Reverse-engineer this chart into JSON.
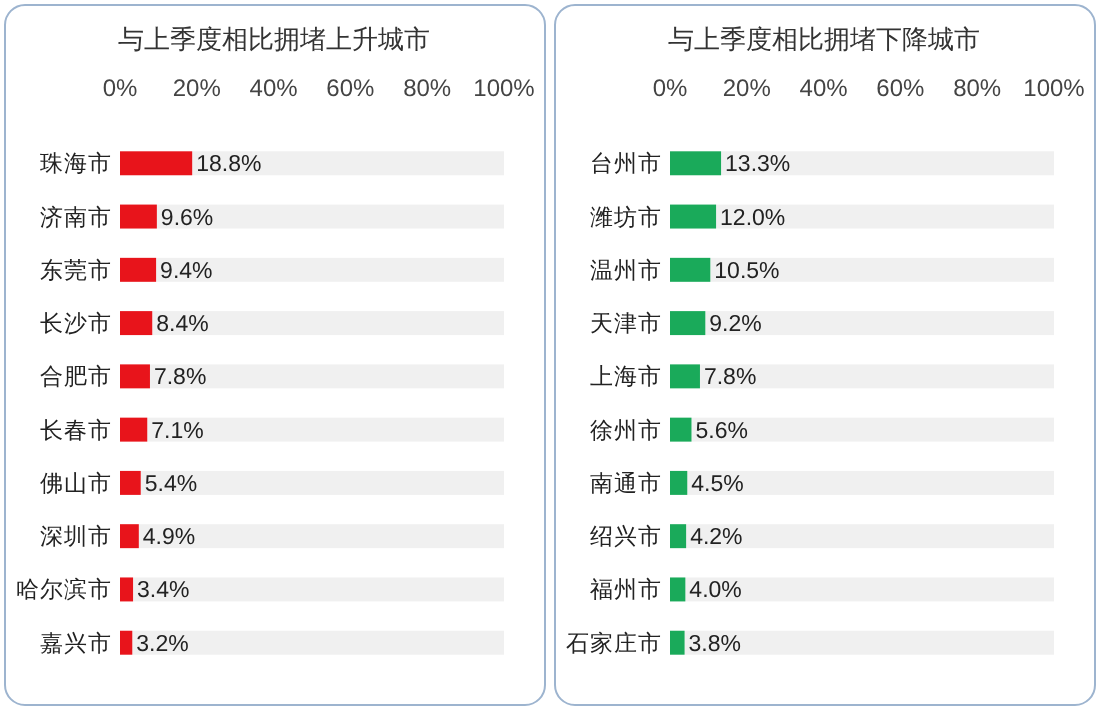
{
  "chart_data": [
    {
      "type": "bar",
      "title": "与上季度相比拥堵上升城市",
      "orientation": "horizontal",
      "stacked": true,
      "categories": [
        "珠海市",
        "济南市",
        "东莞市",
        "长沙市",
        "合肥市",
        "长春市",
        "佛山市",
        "深圳市",
        "哈尔滨市",
        "嘉兴市"
      ],
      "xlim": [
        0,
        100
      ],
      "xticks": [
        {
          "value": 0,
          "label": "0%"
        },
        {
          "value": 20,
          "label": "20%"
        },
        {
          "value": 40,
          "label": "40%"
        },
        {
          "value": 60,
          "label": "60%"
        },
        {
          "value": 80,
          "label": "80%"
        },
        {
          "value": 100,
          "label": "100%"
        }
      ],
      "series": [
        {
          "color": "#e8141b",
          "values": [
            18.8,
            9.6,
            9.4,
            8.4,
            7.8,
            7.1,
            5.4,
            4.9,
            3.4,
            3.2
          ],
          "value_labels": [
            "18.8%",
            "9.6%",
            "9.4%",
            "8.4%",
            "7.8%",
            "7.1%",
            "5.4%",
            "4.9%",
            "3.4%",
            "3.2%"
          ]
        },
        {
          "color": "#f0f0f0",
          "values": [
            81.2,
            90.4,
            90.6,
            91.6,
            92.2,
            92.9,
            94.6,
            95.1,
            96.6,
            96.8
          ]
        }
      ]
    },
    {
      "type": "bar",
      "title": "与上季度相比拥堵下降城市",
      "orientation": "horizontal",
      "stacked": true,
      "categories": [
        "台州市",
        "潍坊市",
        "温州市",
        "天津市",
        "上海市",
        "徐州市",
        "南通市",
        "绍兴市",
        "福州市",
        "石家庄市"
      ],
      "xlim": [
        0,
        100
      ],
      "xticks": [
        {
          "value": 0,
          "label": "0%"
        },
        {
          "value": 20,
          "label": "20%"
        },
        {
          "value": 40,
          "label": "40%"
        },
        {
          "value": 60,
          "label": "60%"
        },
        {
          "value": 80,
          "label": "80%"
        },
        {
          "value": 100,
          "label": "100%"
        }
      ],
      "series": [
        {
          "color": "#1aaa5a",
          "values": [
            13.3,
            12.0,
            10.5,
            9.2,
            7.8,
            5.6,
            4.5,
            4.2,
            4.0,
            3.8
          ],
          "value_labels": [
            "13.3%",
            "12.0%",
            "10.5%",
            "9.2%",
            "7.8%",
            "5.6%",
            "4.5%",
            "4.2%",
            "4.0%",
            "3.8%"
          ]
        },
        {
          "color": "#f0f0f0",
          "values": [
            86.7,
            88.0,
            89.5,
            90.8,
            92.2,
            94.4,
            95.5,
            95.8,
            96.0,
            96.2
          ]
        }
      ]
    }
  ]
}
